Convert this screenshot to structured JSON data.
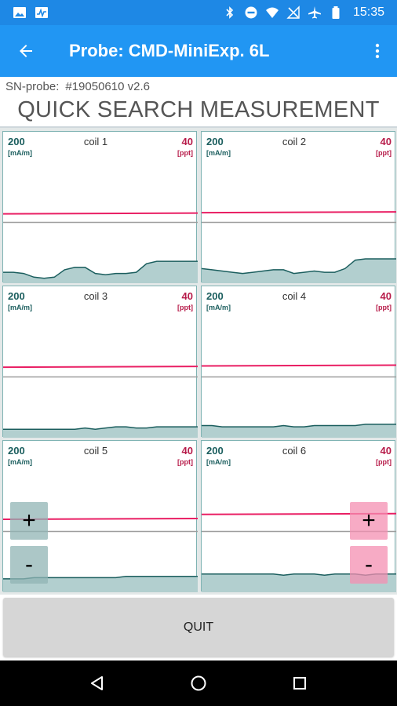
{
  "status_bar": {
    "time": "15:35",
    "icons_left": [
      "image-icon",
      "activity-icon"
    ],
    "icons_right": [
      "bluetooth-icon",
      "do-not-disturb-icon",
      "wifi-icon",
      "no-signal-icon",
      "airplane-icon",
      "battery-icon"
    ]
  },
  "app_bar": {
    "title": "Probe: CMD-MiniExp. 6L",
    "back_icon": "arrow-back-icon",
    "menu_icon": "more-vert-icon",
    "color": "#2196f3"
  },
  "probe": {
    "sn_label": "SN-probe:",
    "sn_value": "#19050610 v2.6"
  },
  "heading": "QUICK SEARCH MEASUREMENT",
  "colors": {
    "conductivity": "#1b5e5e",
    "conductivity_fill": "#b2cfcf",
    "inphase": "#e91e63",
    "divider": "#9e9e9e"
  },
  "panel_common": {
    "left_value": "200",
    "left_unit": "[mA/m]",
    "right_value": "40",
    "right_unit": "[ppt]"
  },
  "panels": [
    {
      "title": "coil 1",
      "inphase_level": 0.57,
      "cond": [
        0.09,
        0.09,
        0.08,
        0.05,
        0.04,
        0.05,
        0.11,
        0.13,
        0.13,
        0.08,
        0.07,
        0.08,
        0.08,
        0.09,
        0.16,
        0.18,
        0.18,
        0.18,
        0.18,
        0.18
      ]
    },
    {
      "title": "coil 2",
      "inphase_level": 0.58,
      "cond": [
        0.12,
        0.11,
        0.1,
        0.09,
        0.08,
        0.09,
        0.1,
        0.11,
        0.11,
        0.08,
        0.09,
        0.1,
        0.09,
        0.09,
        0.12,
        0.19,
        0.2,
        0.2,
        0.2,
        0.2
      ]
    },
    {
      "title": "coil 3",
      "inphase_level": 0.58,
      "cond": [
        0.07,
        0.07,
        0.07,
        0.07,
        0.07,
        0.07,
        0.07,
        0.07,
        0.08,
        0.07,
        0.08,
        0.09,
        0.09,
        0.08,
        0.08,
        0.09,
        0.09,
        0.09,
        0.09,
        0.09
      ]
    },
    {
      "title": "coil 4",
      "inphase_level": 0.59,
      "cond": [
        0.1,
        0.1,
        0.09,
        0.09,
        0.09,
        0.09,
        0.09,
        0.09,
        0.1,
        0.09,
        0.09,
        0.1,
        0.1,
        0.1,
        0.1,
        0.1,
        0.11,
        0.11,
        0.11,
        0.11
      ]
    },
    {
      "title": "coil 5",
      "inphase_level": 0.6,
      "cond": [
        0.11,
        0.11,
        0.11,
        0.12,
        0.12,
        0.12,
        0.12,
        0.12,
        0.12,
        0.12,
        0.12,
        0.12,
        0.13,
        0.13,
        0.13,
        0.13,
        0.13,
        0.13,
        0.13,
        0.13
      ]
    },
    {
      "title": "coil 6",
      "inphase_level": 0.64,
      "cond": [
        0.15,
        0.15,
        0.15,
        0.15,
        0.15,
        0.15,
        0.15,
        0.15,
        0.14,
        0.15,
        0.15,
        0.15,
        0.14,
        0.15,
        0.15,
        0.15,
        0.14,
        0.15,
        0.15,
        0.15
      ]
    }
  ],
  "zoom": {
    "plus_label": "+",
    "minus_label": "-"
  },
  "quit_label": "QUIT",
  "nav": {
    "back_icon": "nav-back-icon",
    "home_icon": "nav-home-icon",
    "recents_icon": "nav-recents-icon"
  }
}
